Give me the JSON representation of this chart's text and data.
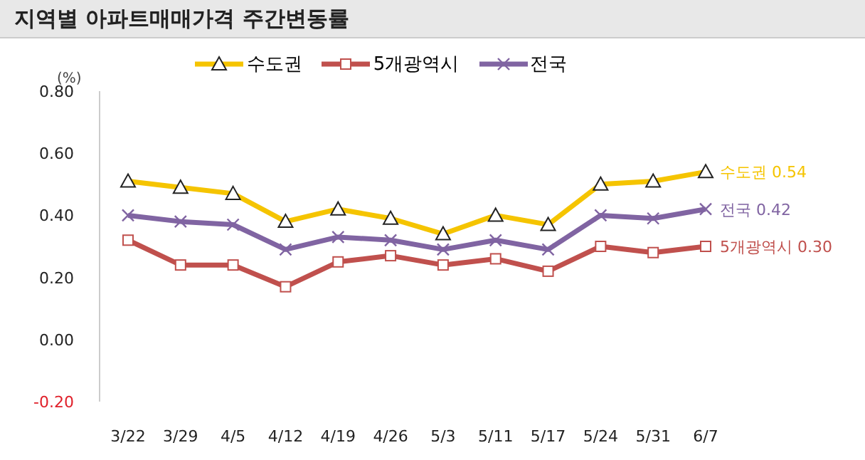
{
  "chart_data": {
    "type": "line",
    "title": "지역별 아파트매매가격 주간변동률",
    "ylabel": "(%)",
    "categories": [
      "3/22",
      "3/29",
      "4/5",
      "4/12",
      "4/19",
      "4/26",
      "5/3",
      "5/11",
      "5/17",
      "5/24",
      "5/31",
      "6/7"
    ],
    "series": [
      {
        "name": "수도권",
        "color": "#f5c400",
        "marker": "triangle",
        "values": [
          0.51,
          0.49,
          0.47,
          0.38,
          0.42,
          0.39,
          0.34,
          0.4,
          0.37,
          0.5,
          0.51,
          0.54
        ],
        "value_labels": [
          null,
          null,
          null,
          null,
          null,
          null,
          null,
          null,
          null,
          null,
          null,
          "0.54"
        ]
      },
      {
        "name": "5개광역시",
        "color": "#c0504d",
        "marker": "square",
        "values": [
          0.32,
          0.24,
          0.24,
          0.17,
          0.25,
          0.27,
          0.24,
          0.26,
          0.22,
          0.3,
          0.28,
          0.3
        ],
        "value_labels": [
          null,
          null,
          null,
          null,
          null,
          null,
          null,
          null,
          null,
          null,
          null,
          "0.30"
        ]
      },
      {
        "name": "전국",
        "color": "#8064a2",
        "marker": "cross",
        "values": [
          0.4,
          0.38,
          0.37,
          0.29,
          0.33,
          0.32,
          0.29,
          0.32,
          0.29,
          0.4,
          0.39,
          0.42
        ],
        "value_labels": [
          null,
          null,
          null,
          null,
          null,
          null,
          null,
          null,
          null,
          null,
          null,
          "0.42"
        ]
      }
    ],
    "ylim": [
      -0.2,
      0.8
    ],
    "yticks": [
      {
        "value": -0.2,
        "label": "-0.20"
      },
      {
        "value": 0,
        "label": "0.00"
      },
      {
        "value": 0.2,
        "label": "0.20"
      },
      {
        "value": 0.4,
        "label": "0.40"
      },
      {
        "value": 0.6,
        "label": "0.60"
      },
      {
        "value": 0.8,
        "label": "0.80"
      }
    ],
    "grid": false,
    "legend": "top",
    "line_style": "solid"
  }
}
